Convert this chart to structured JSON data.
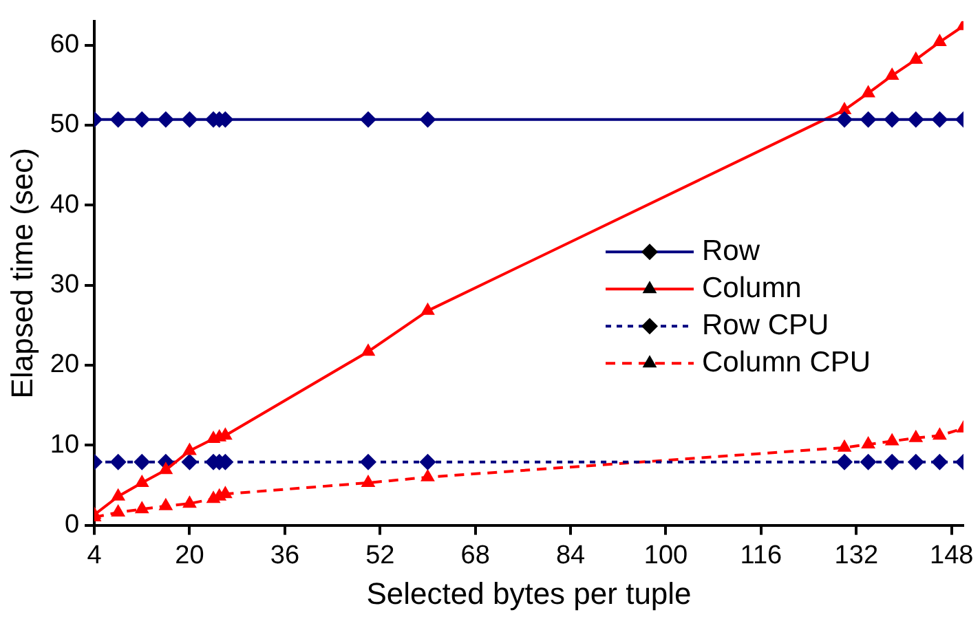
{
  "chart_data": {
    "type": "line",
    "xlabel": "Selected bytes per tuple",
    "ylabel": "Elapsed time (sec)",
    "xlim": [
      4,
      150
    ],
    "xticks": [
      4,
      20,
      36,
      52,
      68,
      84,
      100,
      116,
      132,
      148
    ],
    "ylim": [
      0,
      63
    ],
    "yticks": [
      0,
      10,
      20,
      30,
      40,
      50,
      60
    ],
    "x": [
      4,
      8,
      12,
      16,
      20,
      24,
      25,
      26,
      50,
      60,
      130,
      134,
      138,
      142,
      146,
      150
    ],
    "grid": false,
    "legend": "right",
    "series": [
      {
        "name": "Row",
        "color": "#000080",
        "marker": "diamond",
        "line_style": "solid",
        "values": [
          50.7,
          50.7,
          50.7,
          50.7,
          50.7,
          50.7,
          50.7,
          50.7,
          50.7,
          50.7,
          50.7,
          50.7,
          50.7,
          50.7,
          50.7,
          50.7
        ]
      },
      {
        "name": "Column",
        "color": "#ff0000",
        "marker": "triangle",
        "line_style": "solid",
        "values": [
          1.3,
          3.6,
          5.3,
          6.9,
          9.3,
          10.8,
          11.0,
          11.2,
          21.7,
          26.8,
          51.9,
          54.0,
          56.2,
          58.2,
          60.4,
          62.4
        ]
      },
      {
        "name": "Row CPU",
        "color": "#000080",
        "marker": "diamond",
        "line_style": "dotted",
        "values": [
          7.9,
          7.9,
          7.9,
          7.9,
          7.9,
          7.9,
          7.9,
          7.9,
          7.9,
          7.9,
          7.9,
          7.9,
          7.9,
          7.9,
          7.9,
          7.9
        ]
      },
      {
        "name": "Column CPU",
        "color": "#ff0000",
        "marker": "triangle",
        "line_style": "dashed",
        "values": [
          1.0,
          1.6,
          2.0,
          2.4,
          2.7,
          3.3,
          3.6,
          3.9,
          5.3,
          6.0,
          9.7,
          10.1,
          10.5,
          10.9,
          11.2,
          12.1
        ]
      }
    ]
  }
}
